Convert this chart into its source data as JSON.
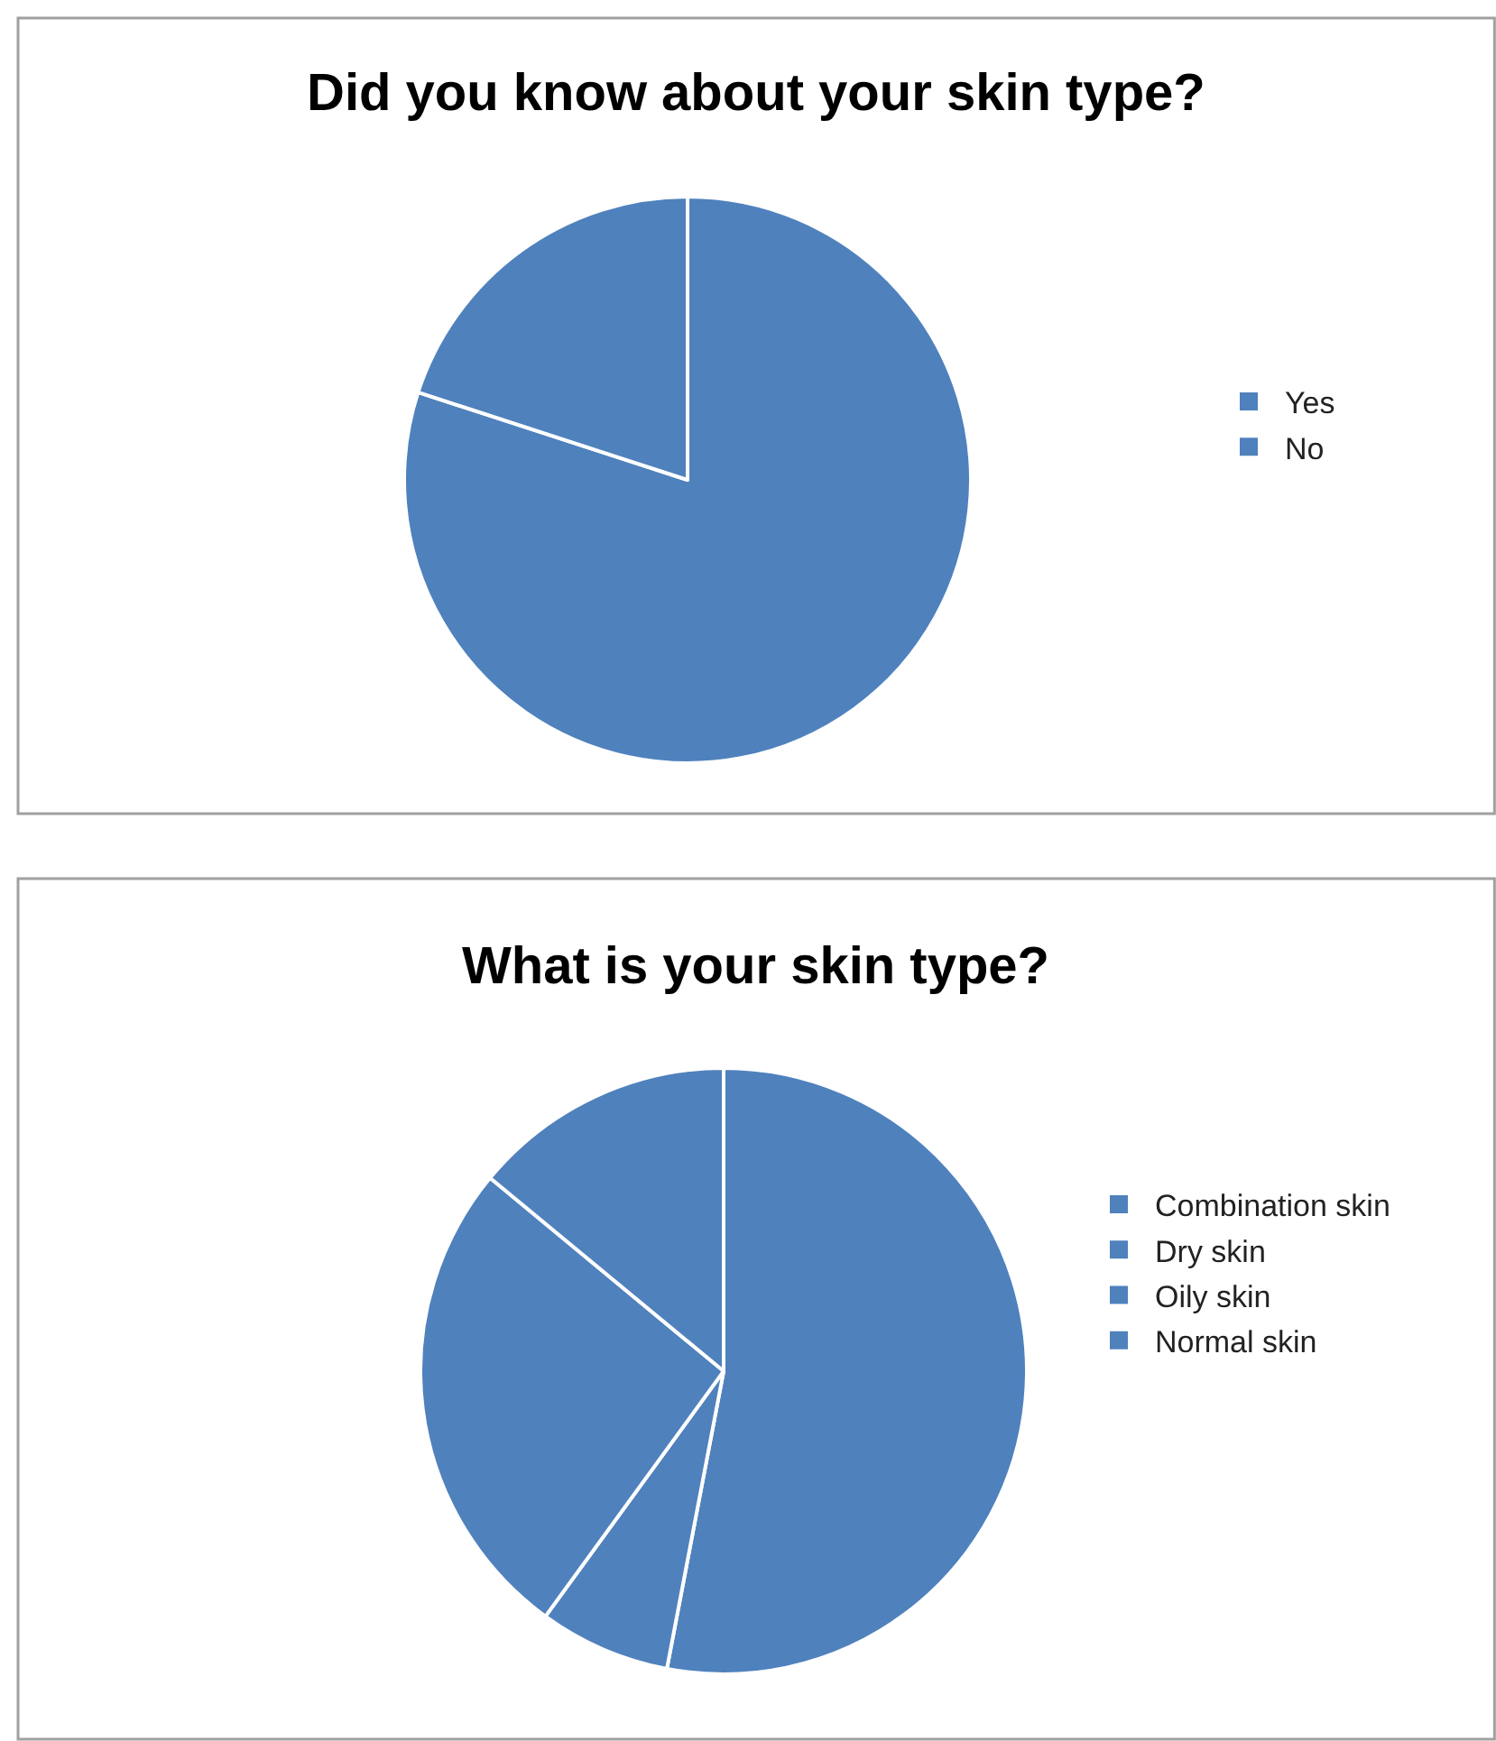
{
  "chart_data": [
    {
      "type": "pie",
      "title": "Did you know about your skin type?",
      "categories": [
        "Yes",
        "No"
      ],
      "values": [
        80,
        20
      ],
      "colors": [
        "#4f81bd",
        "#4f81bd"
      ],
      "legend": "right"
    },
    {
      "type": "pie",
      "title": "What is your skin type?",
      "categories": [
        "Combination skin",
        "Dry skin",
        "Oily skin",
        "Normal skin"
      ],
      "values": [
        53,
        7,
        26,
        14
      ],
      "colors": [
        "#4f81bd",
        "#4f81bd",
        "#4f81bd",
        "#4f81bd"
      ],
      "legend": "right"
    }
  ]
}
